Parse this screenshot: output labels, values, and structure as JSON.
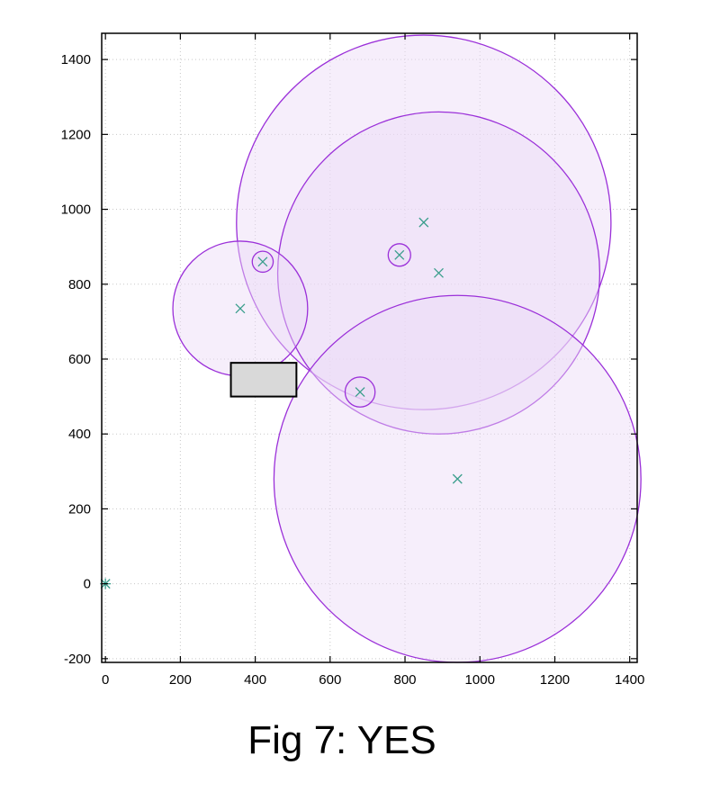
{
  "caption": "Fig 7: YES",
  "chart_data": {
    "type": "scatter",
    "title": "",
    "xlabel": "",
    "ylabel": "",
    "xlim": [
      -10,
      1420
    ],
    "ylim": [
      -210,
      1470
    ],
    "grid": true,
    "x_ticks": [
      0,
      200,
      400,
      600,
      800,
      1000,
      1200,
      1400
    ],
    "y_ticks": [
      -200,
      0,
      200,
      400,
      600,
      800,
      1000,
      1200,
      1400
    ],
    "points": [
      {
        "x": 0,
        "y": 0
      },
      {
        "x": 360,
        "y": 735
      },
      {
        "x": 420,
        "y": 860
      },
      {
        "x": 680,
        "y": 512
      },
      {
        "x": 785,
        "y": 878
      },
      {
        "x": 850,
        "y": 965
      },
      {
        "x": 890,
        "y": 830
      },
      {
        "x": 940,
        "y": 280
      }
    ],
    "circles": [
      {
        "cx": 850,
        "cy": 965,
        "r": 500
      },
      {
        "cx": 890,
        "cy": 830,
        "r": 430
      },
      {
        "cx": 940,
        "cy": 280,
        "r": 490
      },
      {
        "cx": 360,
        "cy": 735,
        "r": 180
      },
      {
        "cx": 420,
        "cy": 860,
        "r": 28
      },
      {
        "cx": 785,
        "cy": 878,
        "r": 30
      },
      {
        "cx": 680,
        "cy": 512,
        "r": 40
      }
    ],
    "rectangle": {
      "x0": 335,
      "y0": 500,
      "x1": 510,
      "y1": 590
    },
    "colors": {
      "circle_stroke": "#9b30d9",
      "circle_fill": "#ead9f7",
      "point_marker": "#3a9e8c",
      "rect_fill": "#d9d9d9",
      "rect_stroke": "#000000",
      "grid": "#c8c8c8"
    }
  }
}
